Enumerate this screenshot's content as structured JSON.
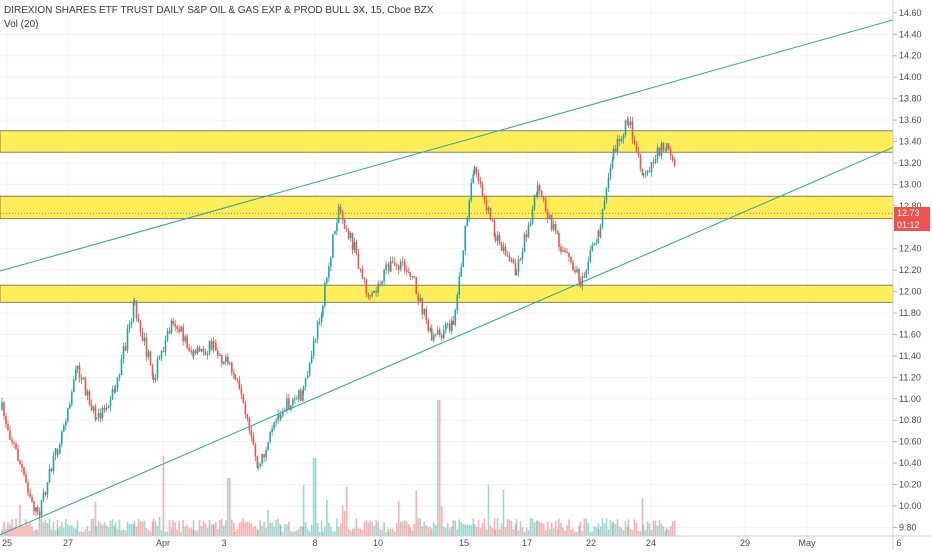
{
  "header": {
    "title": "DIREXION SHARES ETF TRUST DAILY S&P OIL & GAS EXP & PROD BULL 3X, 15, Cboe BZX",
    "indicator": "Vol (20)"
  },
  "price_tags": {
    "last_price": "12.73",
    "countdown": "01:12"
  },
  "colors": {
    "up": "#26a69a",
    "down": "#ef5350",
    "zone": "#ffeb3b",
    "trendline": "#26a69a",
    "axis_text": "#4a4a4a",
    "grid": "#f0f3fa"
  },
  "chart_data": {
    "type": "candlestick",
    "timeframe": "15",
    "y_axis": {
      "ticks": [
        "14.60",
        "14.40",
        "14.20",
        "14.00",
        "13.80",
        "13.60",
        "13.40",
        "13.20",
        "13.00",
        "12.80",
        "12.40",
        "12.20",
        "12.00",
        "11.80",
        "11.60",
        "11.40",
        "11.20",
        "11.00",
        "10.80",
        "10.60",
        "10.40",
        "10.20",
        "10.00",
        "9.80"
      ],
      "range": [
        9.72,
        14.72
      ],
      "scale": "linear"
    },
    "x_axis": {
      "ticks": [
        "25",
        "27",
        "Apr",
        "3",
        "8",
        "10",
        "15",
        "17",
        "22",
        "24",
        "29",
        "May",
        "6"
      ]
    },
    "zones": [
      {
        "low": 13.3,
        "high": 13.5
      },
      {
        "low": 12.68,
        "high": 12.89
      },
      {
        "low": 11.9,
        "high": 12.06
      }
    ],
    "trendlines": [
      {
        "from": [
          "25",
          12.21
        ],
        "to": [
          "6",
          14.55
        ]
      },
      {
        "from": [
          "25",
          9.76
        ],
        "to": [
          "6",
          13.37
        ]
      }
    ],
    "anchors": [
      {
        "date": "25",
        "price": 10.9
      },
      {
        "date": "25",
        "price": 9.9
      },
      {
        "date": "25",
        "price": 10.55
      },
      {
        "date": "27",
        "price": 11.3
      },
      {
        "date": "27",
        "price": 10.8
      },
      {
        "date": "27",
        "price": 11.1
      },
      {
        "date": "27",
        "price": 11.88
      },
      {
        "date": "27",
        "price": 11.2
      },
      {
        "date": "Apr",
        "price": 11.75
      },
      {
        "date": "Apr",
        "price": 11.4
      },
      {
        "date": "Apr",
        "price": 11.5
      },
      {
        "date": "3",
        "price": 11.2
      },
      {
        "date": "3",
        "price": 10.35
      },
      {
        "date": "3",
        "price": 10.9
      },
      {
        "date": "3",
        "price": 11.05
      },
      {
        "date": "8",
        "price": 11.9
      },
      {
        "date": "8",
        "price": 12.8
      },
      {
        "date": "8",
        "price": 12.4
      },
      {
        "date": "8",
        "price": 11.9
      },
      {
        "date": "10",
        "price": 12.25
      },
      {
        "date": "10",
        "price": 12.2
      },
      {
        "date": "10",
        "price": 11.55
      },
      {
        "date": "10",
        "price": 11.7
      },
      {
        "date": "15",
        "price": 13.2
      },
      {
        "date": "15",
        "price": 12.5
      },
      {
        "date": "15",
        "price": 12.2
      },
      {
        "date": "17",
        "price": 12.95
      },
      {
        "date": "17",
        "price": 12.45
      },
      {
        "date": "17",
        "price": 12.1
      },
      {
        "date": "22",
        "price": 12.55
      },
      {
        "date": "22",
        "price": 13.3
      },
      {
        "date": "22",
        "price": 13.6
      },
      {
        "date": "22",
        "price": 13.1
      },
      {
        "date": "24",
        "price": 13.4
      },
      {
        "date": "24",
        "price": 12.75
      },
      {
        "date": "24",
        "price": 12.73
      }
    ]
  }
}
